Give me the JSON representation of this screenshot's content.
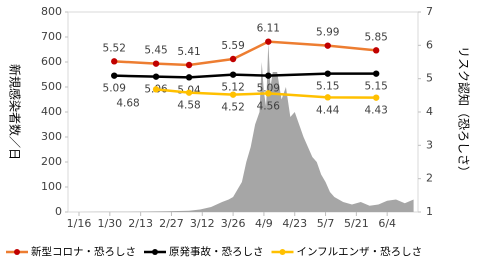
{
  "chart_data": {
    "type": "line",
    "y_label": "新規感染者数／日",
    "y2_label": "リスク認知（恐ろしさ）",
    "xlim": [
      -5,
      154
    ],
    "xticks": [
      {
        "value": 0,
        "label": "1/16"
      },
      {
        "value": 14,
        "label": "1/30"
      },
      {
        "value": 28,
        "label": "2/13"
      },
      {
        "value": 42,
        "label": "2/27"
      },
      {
        "value": 56,
        "label": "3/12"
      },
      {
        "value": 70,
        "label": "3/26"
      },
      {
        "value": 84,
        "label": "4/9"
      },
      {
        "value": 98,
        "label": "4/23"
      },
      {
        "value": 112,
        "label": "5/7"
      },
      {
        "value": 126,
        "label": "5/21"
      },
      {
        "value": 140,
        "label": "6/4"
      }
    ],
    "ylim": [
      0,
      800
    ],
    "yticks": [
      0,
      100,
      200,
      300,
      400,
      500,
      600,
      700,
      800
    ],
    "y2lim": [
      1,
      7
    ],
    "y2ticks": [
      1,
      2,
      3,
      4,
      5,
      6,
      7
    ],
    "series": [
      {
        "type": "area",
        "color": "#a6a6a6",
        "x": [
          0,
          10,
          20,
          30,
          40,
          50,
          55,
          60,
          65,
          68,
          70,
          72,
          74,
          76,
          78,
          80,
          82,
          83,
          84,
          85,
          86,
          87,
          88,
          90,
          92,
          94,
          96,
          98,
          100,
          102,
          104,
          106,
          108,
          110,
          112,
          114,
          116,
          118,
          120,
          124,
          128,
          132,
          136,
          140,
          144,
          148,
          152
        ],
        "values": [
          0,
          1,
          1,
          2,
          3,
          5,
          10,
          20,
          40,
          50,
          60,
          90,
          120,
          200,
          260,
          350,
          400,
          600,
          480,
          420,
          680,
          500,
          560,
          560,
          450,
          500,
          380,
          400,
          350,
          300,
          260,
          220,
          200,
          150,
          120,
          80,
          60,
          50,
          40,
          30,
          40,
          25,
          30,
          45,
          50,
          35,
          50
        ]
      },
      {
        "type": "line",
        "axis": "y2",
        "name": "新型コロナ・恐ろしさ",
        "color": "#ed7d31",
        "x": [
          16,
          35,
          50,
          70,
          86,
          113,
          135
        ],
        "values": [
          5.52,
          5.45,
          5.41,
          5.59,
          6.11,
          5.99,
          5.85
        ]
      },
      {
        "type": "line",
        "axis": "y2",
        "name": "原発事故・恐ろしさ",
        "color": "#000000",
        "x": [
          16,
          35,
          50,
          70,
          86,
          113,
          135
        ],
        "values": [
          5.09,
          5.06,
          5.04,
          5.12,
          5.09,
          5.15,
          5.15
        ]
      },
      {
        "type": "line",
        "axis": "y2",
        "name": "インフルエンザ・恐ろしさ",
        "color": "#ffc000",
        "x": [
          35,
          50,
          70,
          86,
          113,
          135
        ],
        "values": [
          4.68,
          4.58,
          4.52,
          4.56,
          4.44,
          4.43
        ]
      }
    ]
  }
}
